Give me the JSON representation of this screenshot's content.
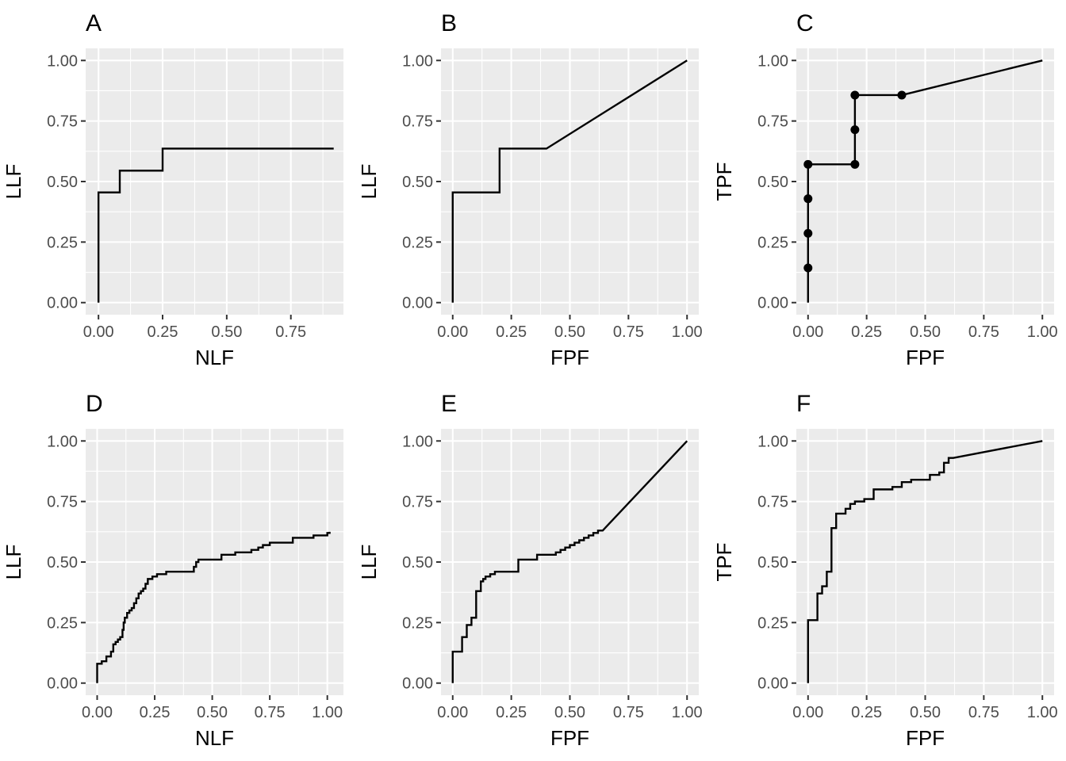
{
  "chart_data": [
    {
      "panel": "A",
      "type": "line",
      "title": "A",
      "xlabel": "NLF",
      "ylabel": "LLF",
      "xlim": [
        -0.05,
        0.955
      ],
      "ylim": [
        -0.05,
        1.05
      ],
      "xticks": [
        "0.00",
        "0.25",
        "0.50",
        "0.75"
      ],
      "xtick_values": [
        0,
        0.25,
        0.5,
        0.75
      ],
      "yticks": [
        "0.00",
        "0.25",
        "0.50",
        "0.75",
        "1.00"
      ],
      "ytick_values": [
        0,
        0.25,
        0.5,
        0.75,
        1
      ],
      "grid": true,
      "legend": "none",
      "step": true,
      "points": false,
      "x": [
        0,
        0,
        0.083,
        0.25,
        0.917
      ],
      "y": [
        0,
        0.455,
        0.545,
        0.636,
        0.636
      ]
    },
    {
      "panel": "B",
      "type": "line",
      "title": "B",
      "xlabel": "FPF",
      "ylabel": "LLF",
      "xlim": [
        -0.05,
        1.05
      ],
      "ylim": [
        -0.05,
        1.05
      ],
      "xticks": [
        "0.00",
        "0.25",
        "0.50",
        "0.75",
        "1.00"
      ],
      "xtick_values": [
        0,
        0.25,
        0.5,
        0.75,
        1
      ],
      "yticks": [
        "0.00",
        "0.25",
        "0.50",
        "0.75",
        "1.00"
      ],
      "ytick_values": [
        0,
        0.25,
        0.5,
        0.75,
        1
      ],
      "grid": true,
      "legend": "none",
      "step": true,
      "points": false,
      "x": [
        0,
        0,
        0.2,
        0.4,
        1.0
      ],
      "y": [
        0,
        0.455,
        0.636,
        0.636,
        1.0
      ]
    },
    {
      "panel": "C",
      "type": "line",
      "title": "C",
      "xlabel": "FPF",
      "ylabel": "TPF",
      "xlim": [
        -0.05,
        1.05
      ],
      "ylim": [
        -0.05,
        1.05
      ],
      "xticks": [
        "0.00",
        "0.25",
        "0.50",
        "0.75",
        "1.00"
      ],
      "xtick_values": [
        0,
        0.25,
        0.5,
        0.75,
        1
      ],
      "yticks": [
        "0.00",
        "0.25",
        "0.50",
        "0.75",
        "1.00"
      ],
      "ytick_values": [
        0,
        0.25,
        0.5,
        0.75,
        1
      ],
      "grid": true,
      "legend": "none",
      "step": true,
      "points": true,
      "x": [
        0,
        0,
        0,
        0,
        0,
        0.2,
        0.2,
        0.2,
        0.4,
        1.0
      ],
      "y": [
        0,
        0.143,
        0.286,
        0.429,
        0.571,
        0.571,
        0.714,
        0.857,
        0.857,
        1.0
      ],
      "operating_points": [
        [
          0,
          0.143
        ],
        [
          0,
          0.286
        ],
        [
          0,
          0.429
        ],
        [
          0,
          0.571
        ],
        [
          0.2,
          0.571
        ],
        [
          0.2,
          0.714
        ],
        [
          0.2,
          0.857
        ],
        [
          0.4,
          0.857
        ]
      ]
    },
    {
      "panel": "D",
      "type": "line",
      "title": "D",
      "xlabel": "NLF",
      "ylabel": "LLF",
      "xlim": [
        -0.05,
        1.07
      ],
      "ylim": [
        -0.05,
        1.05
      ],
      "xticks": [
        "0.00",
        "0.25",
        "0.50",
        "0.75",
        "1.00"
      ],
      "xtick_values": [
        0,
        0.25,
        0.5,
        0.75,
        1
      ],
      "yticks": [
        "0.00",
        "0.25",
        "0.50",
        "0.75",
        "1.00"
      ],
      "ytick_values": [
        0,
        0.25,
        0.5,
        0.75,
        1
      ],
      "grid": true,
      "legend": "none",
      "step": true,
      "points": false,
      "x": [
        0,
        0,
        0.02,
        0.04,
        0.06,
        0.07,
        0.08,
        0.09,
        0.1,
        0.11,
        0.115,
        0.12,
        0.13,
        0.14,
        0.15,
        0.16,
        0.17,
        0.18,
        0.19,
        0.2,
        0.21,
        0.22,
        0.24,
        0.26,
        0.28,
        0.3,
        0.32,
        0.42,
        0.43,
        0.44,
        0.54,
        0.6,
        0.67,
        0.7,
        0.72,
        0.73,
        0.75,
        0.85,
        0.94,
        1.0,
        1.01
      ],
      "y": [
        0,
        0.08,
        0.09,
        0.11,
        0.13,
        0.16,
        0.17,
        0.18,
        0.19,
        0.22,
        0.25,
        0.27,
        0.29,
        0.3,
        0.31,
        0.33,
        0.35,
        0.37,
        0.38,
        0.39,
        0.41,
        0.43,
        0.44,
        0.45,
        0.45,
        0.46,
        0.46,
        0.48,
        0.5,
        0.51,
        0.53,
        0.54,
        0.55,
        0.56,
        0.57,
        0.57,
        0.58,
        0.6,
        0.61,
        0.62,
        0.625
      ]
    },
    {
      "panel": "E",
      "type": "line",
      "title": "E",
      "xlabel": "FPF",
      "ylabel": "LLF",
      "xlim": [
        -0.05,
        1.05
      ],
      "ylim": [
        -0.05,
        1.05
      ],
      "xticks": [
        "0.00",
        "0.25",
        "0.50",
        "0.75",
        "1.00"
      ],
      "xtick_values": [
        0,
        0.25,
        0.5,
        0.75,
        1
      ],
      "yticks": [
        "0.00",
        "0.25",
        "0.50",
        "0.75",
        "1.00"
      ],
      "ytick_values": [
        0,
        0.25,
        0.5,
        0.75,
        1
      ],
      "grid": true,
      "legend": "none",
      "step": true,
      "points": false,
      "x": [
        0,
        0,
        0.04,
        0.06,
        0.08,
        0.1,
        0.12,
        0.13,
        0.14,
        0.16,
        0.18,
        0.27,
        0.28,
        0.36,
        0.42,
        0.44,
        0.46,
        0.48,
        0.5,
        0.52,
        0.54,
        0.56,
        0.58,
        0.6,
        0.62,
        0.64,
        1.0
      ],
      "y": [
        0,
        0.13,
        0.19,
        0.24,
        0.27,
        0.38,
        0.42,
        0.43,
        0.44,
        0.45,
        0.46,
        0.46,
        0.51,
        0.53,
        0.53,
        0.54,
        0.55,
        0.56,
        0.57,
        0.58,
        0.59,
        0.6,
        0.61,
        0.62,
        0.63,
        0.63,
        1.0
      ]
    },
    {
      "panel": "F",
      "type": "line",
      "title": "F",
      "xlabel": "FPF",
      "ylabel": "TPF",
      "xlim": [
        -0.05,
        1.05
      ],
      "ylim": [
        -0.05,
        1.05
      ],
      "xticks": [
        "0.00",
        "0.25",
        "0.50",
        "0.75",
        "1.00"
      ],
      "xtick_values": [
        0,
        0.25,
        0.5,
        0.75,
        1
      ],
      "yticks": [
        "0.00",
        "0.25",
        "0.50",
        "0.75",
        "1.00"
      ],
      "ytick_values": [
        0,
        0.25,
        0.5,
        0.75,
        1
      ],
      "grid": true,
      "legend": "none",
      "step": true,
      "points": false,
      "x": [
        0,
        0,
        0.04,
        0.06,
        0.08,
        0.1,
        0.12,
        0.16,
        0.18,
        0.2,
        0.24,
        0.28,
        0.36,
        0.4,
        0.44,
        0.52,
        0.56,
        0.58,
        0.6,
        0.62,
        1.0
      ],
      "y": [
        0,
        0.26,
        0.37,
        0.4,
        0.46,
        0.64,
        0.7,
        0.72,
        0.74,
        0.75,
        0.76,
        0.8,
        0.81,
        0.83,
        0.84,
        0.86,
        0.87,
        0.91,
        0.93,
        0.93,
        1.0
      ]
    }
  ]
}
